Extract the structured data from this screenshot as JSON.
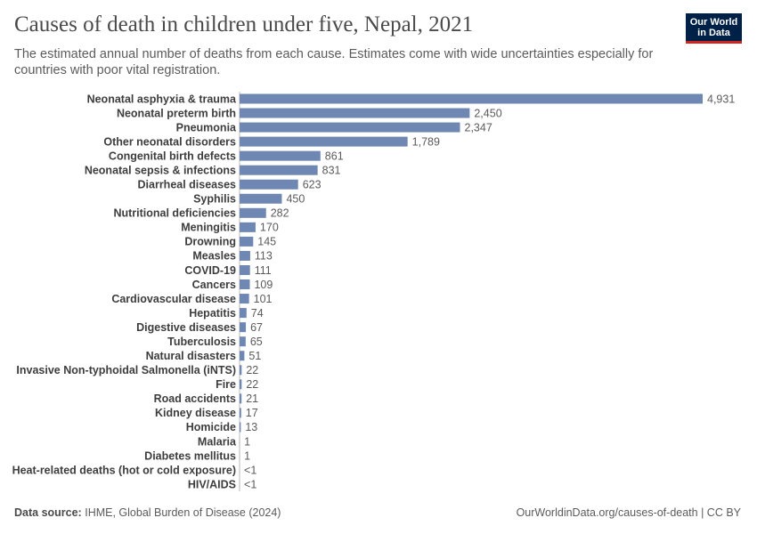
{
  "chart_data": {
    "type": "bar",
    "orientation": "horizontal",
    "title": "Causes of death in children under five, Nepal, 2021",
    "subtitle": "The estimated annual number of deaths from each cause. Estimates come with wide uncertainties especially for countries with poor vital registration.",
    "logo": [
      "Our World",
      "in Data"
    ],
    "source_label": "Data source:",
    "source": "IHME, Global Burden of Disease (2024)",
    "credit": "OurWorldinData.org/causes-of-death | CC BY",
    "color": "#6e87b3",
    "categories": [
      "Neonatal asphyxia & trauma",
      "Neonatal preterm birth",
      "Pneumonia",
      "Other neonatal disorders",
      "Congenital birth defects",
      "Neonatal sepsis & infections",
      "Diarrheal diseases",
      "Syphilis",
      "Nutritional deficiencies",
      "Meningitis",
      "Drowning",
      "Measles",
      "COVID-19",
      "Cancers",
      "Cardiovascular disease",
      "Hepatitis",
      "Digestive diseases",
      "Tuberculosis",
      "Natural disasters",
      "Invasive Non-typhoidal Salmonella (iNTS)",
      "Fire",
      "Road accidents",
      "Kidney disease",
      "Homicide",
      "Malaria",
      "Diabetes mellitus",
      "Heat-related deaths (hot or cold exposure)",
      "HIV/AIDS"
    ],
    "values": [
      4931,
      2450,
      2347,
      1789,
      861,
      831,
      623,
      450,
      282,
      170,
      145,
      113,
      111,
      109,
      101,
      74,
      67,
      65,
      51,
      22,
      22,
      21,
      17,
      13,
      1,
      1,
      0.4,
      0.4
    ],
    "value_labels": [
      "4,931",
      "2,450",
      "2,347",
      "1,789",
      "861",
      "831",
      "623",
      "450",
      "282",
      "170",
      "145",
      "113",
      "111",
      "109",
      "101",
      "74",
      "67",
      "65",
      "51",
      "22",
      "22",
      "21",
      "17",
      "13",
      "1",
      "1",
      "<1",
      "<1"
    ]
  }
}
